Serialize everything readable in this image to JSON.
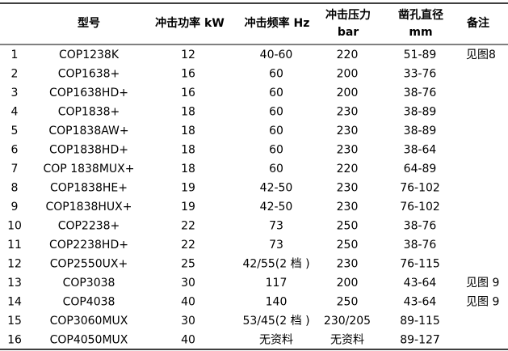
{
  "table": {
    "header": [
      "型号",
      "冲击功率 kW",
      "冲击频率 Hz",
      [
        "冲击压力",
        "bar"
      ],
      [
        "凿孔直径",
        "mm"
      ],
      "备注"
    ],
    "rows": [
      [
        "1",
        "COP1238K",
        "12",
        "40-60",
        "220",
        "51-89",
        "见图8"
      ],
      [
        "2",
        "COP1638+",
        "16",
        "60",
        "200",
        "33-76"
      ],
      [
        "3",
        "COP1638HD+",
        "16",
        "60",
        "200",
        "38-76"
      ],
      [
        "4",
        "COP1838+",
        "18",
        "60",
        "230",
        "38-89"
      ],
      [
        "5",
        "COP1838AW+",
        "18",
        "60",
        "230",
        "38-89"
      ],
      [
        "6",
        "COP1838HD+",
        "18",
        "60",
        "230",
        "38-64"
      ],
      [
        "7",
        "COP 1838MUX+",
        "18",
        "60",
        "220",
        "64-89"
      ],
      [
        "8",
        "COP1838HE+",
        "19",
        "42-50",
        "230",
        "76-102"
      ],
      [
        "9",
        "COP1838HUX+",
        "19",
        "42-50",
        "230",
        "76-102"
      ],
      [
        "10",
        "COP2238+",
        "22",
        "73",
        "250",
        "38-76"
      ],
      [
        "11",
        "COP2238HD+",
        "22",
        "73",
        "250",
        "38-76"
      ],
      [
        "12",
        "COP2550UX+",
        "25",
        "42/55(2 档 )",
        "230",
        "76-115"
      ],
      [
        "13",
        "COP3038",
        "30",
        "117",
        "200",
        "43-64",
        "见图 9"
      ],
      [
        "14",
        "COP4038",
        "40",
        "140",
        "250",
        "43-64",
        "见图 9"
      ],
      [
        "15",
        "COP3060MUX",
        "30",
        "53/45(2 档 )",
        "230/205",
        "89-115"
      ],
      [
        "16",
        "COP4050MUX",
        "40",
        "无资料",
        "无资料",
        "89-127"
      ]
    ]
  }
}
